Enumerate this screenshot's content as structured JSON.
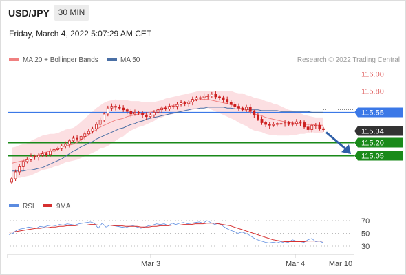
{
  "header": {
    "symbol": "USD/JPY",
    "timeframe": "30 MIN",
    "datetime": "Friday, March 4, 2022 5:07:29 AM CET",
    "source": "Research © 2022 Trading Central"
  },
  "legend": {
    "ma20_label": "MA 20 + Bollinger Bands",
    "ma50_label": "MA 50",
    "rsi_label": "RSI",
    "rsi_ma_label": "9MA"
  },
  "colors": {
    "ma20": "#f08080",
    "ma50": "#4a6fa5",
    "bollinger_fill": "#fbd9dd",
    "candle": "#cc1f1f",
    "resistance": "#e06666",
    "pivot": "#3b78e7",
    "support": "#1a8a1a",
    "current": "#333333",
    "rsi": "#5b8be0",
    "rsi_ma": "#d63030"
  },
  "chart_data": [
    {
      "type": "candlestick",
      "levels": [
        {
          "label": "116.00",
          "value": 116.0,
          "kind": "resistance"
        },
        {
          "label": "115.80",
          "value": 115.8,
          "kind": "resistance"
        },
        {
          "label": "115.55",
          "value": 115.55,
          "kind": "pivot"
        },
        {
          "label": "115.34",
          "value": 115.34,
          "kind": "current"
        },
        {
          "label": "115.20",
          "value": 115.2,
          "kind": "support"
        },
        {
          "label": "115.05",
          "value": 115.05,
          "kind": "support"
        }
      ],
      "ylim": [
        114.7,
        116.05
      ],
      "x_ticks": [
        "Mar 3",
        "Mar 4",
        "Mar 10"
      ],
      "close": [
        114.78,
        114.86,
        114.92,
        114.98,
        115.0,
        115.04,
        115.03,
        115.05,
        115.07,
        115.06,
        115.1,
        115.12,
        115.13,
        115.16,
        115.18,
        115.22,
        115.25,
        115.24,
        115.27,
        115.3,
        115.33,
        115.36,
        115.41,
        115.46,
        115.53,
        115.6,
        115.62,
        115.61,
        115.6,
        115.58,
        115.56,
        115.53,
        115.55,
        115.54,
        115.52,
        115.5,
        115.52,
        115.55,
        115.58,
        115.6,
        115.59,
        115.62,
        115.62,
        115.64,
        115.66,
        115.65,
        115.67,
        115.7,
        115.72,
        115.72,
        115.74,
        115.74,
        115.76,
        115.73,
        115.72,
        115.7,
        115.67,
        115.64,
        115.62,
        115.6,
        115.58,
        115.61,
        115.56,
        115.52,
        115.47,
        115.43,
        115.41,
        115.4,
        115.41,
        115.42,
        115.42,
        115.43,
        115.41,
        115.42,
        115.44,
        115.43,
        115.38,
        115.35,
        115.4,
        115.4,
        115.36,
        115.35
      ],
      "ma20": [
        114.96,
        114.97,
        114.98,
        114.99,
        115.0,
        115.02,
        115.04,
        115.06,
        115.08,
        115.09,
        115.1,
        115.11,
        115.12,
        115.14,
        115.16,
        115.17,
        115.18,
        115.2,
        115.23,
        115.26,
        115.29,
        115.32,
        115.35,
        115.38,
        115.4,
        115.42,
        115.44,
        115.46,
        115.47,
        115.48,
        115.5,
        115.51,
        115.52,
        115.53,
        115.53,
        115.54,
        115.55,
        115.56,
        115.58,
        115.59,
        115.61,
        115.62,
        115.63,
        115.64,
        115.65,
        115.66,
        115.67,
        115.68,
        115.69,
        115.7,
        115.7,
        115.7,
        115.69,
        115.68,
        115.67,
        115.66,
        115.65,
        115.64,
        115.62,
        115.6,
        115.59,
        115.57,
        115.55,
        115.53,
        115.52,
        115.51,
        115.49,
        115.48,
        115.47,
        115.46,
        115.45,
        115.44,
        115.43,
        115.43,
        115.42,
        115.42,
        115.41,
        115.41,
        115.41,
        115.4,
        115.4,
        115.4
      ],
      "ma50": [
        114.87,
        114.87,
        114.87,
        114.87,
        114.88,
        114.88,
        114.89,
        114.9,
        114.91,
        114.93,
        114.95,
        114.97,
        114.99,
        115.01,
        115.04,
        115.07,
        115.1,
        115.12,
        115.15,
        115.17,
        115.19,
        115.21,
        115.24,
        115.26,
        115.28,
        115.3,
        115.32,
        115.34,
        115.36,
        115.37,
        115.39,
        115.41,
        115.42,
        115.44,
        115.45,
        115.47,
        115.48,
        115.49,
        115.5,
        115.51,
        115.52,
        115.53,
        115.54,
        115.55,
        115.56,
        115.57,
        115.58,
        115.59,
        115.59,
        115.6,
        115.6,
        115.61,
        115.61,
        115.61,
        115.61,
        115.61,
        115.6,
        115.6,
        115.59,
        115.59,
        115.59,
        115.59,
        115.58,
        115.58,
        115.58,
        115.57,
        115.57,
        115.57,
        115.57,
        115.57,
        115.56,
        115.56,
        115.56,
        115.56,
        115.56,
        115.56,
        115.56,
        115.56,
        115.55,
        115.55,
        115.55,
        115.55
      ],
      "bb_width": [
        0.18,
        0.18,
        0.19,
        0.19,
        0.19,
        0.2,
        0.2,
        0.2,
        0.2,
        0.2,
        0.2,
        0.19,
        0.19,
        0.19,
        0.19,
        0.19,
        0.19,
        0.2,
        0.21,
        0.22,
        0.23,
        0.24,
        0.25,
        0.25,
        0.26,
        0.26,
        0.25,
        0.24,
        0.22,
        0.21,
        0.19,
        0.17,
        0.16,
        0.15,
        0.14,
        0.13,
        0.12,
        0.11,
        0.1,
        0.1,
        0.1,
        0.1,
        0.1,
        0.1,
        0.1,
        0.1,
        0.1,
        0.1,
        0.1,
        0.1,
        0.1,
        0.1,
        0.11,
        0.12,
        0.13,
        0.14,
        0.15,
        0.16,
        0.16,
        0.17,
        0.18,
        0.18,
        0.19,
        0.19,
        0.19,
        0.19,
        0.19,
        0.19,
        0.18,
        0.18,
        0.17,
        0.16,
        0.15,
        0.14,
        0.13,
        0.12,
        0.11,
        0.1,
        0.09,
        0.09,
        0.09,
        0.09
      ]
    },
    {
      "type": "line",
      "series": [
        {
          "name": "RSI"
        },
        {
          "name": "9MA"
        }
      ],
      "ylim": [
        25,
        75
      ],
      "y_ticks": [
        70,
        50,
        30
      ],
      "rsi": [
        48,
        50,
        55,
        57,
        58,
        60,
        59,
        58,
        61,
        60,
        62,
        63,
        62,
        64,
        63,
        65,
        64,
        63,
        65,
        66,
        67,
        68,
        66,
        58,
        66,
        60,
        63,
        62,
        61,
        60,
        59,
        61,
        62,
        60,
        58,
        60,
        62,
        63,
        65,
        64,
        65,
        62,
        66,
        64,
        66,
        67,
        65,
        66,
        67,
        68,
        66,
        70,
        67,
        64,
        66,
        62,
        58,
        55,
        53,
        50,
        52,
        50,
        47,
        43,
        40,
        38,
        36,
        35,
        36,
        35,
        37,
        35,
        36,
        40,
        38,
        37,
        36,
        40,
        42,
        37,
        38,
        35
      ],
      "rsi_ma": [
        52,
        52,
        53,
        54,
        55,
        56,
        57,
        58,
        58,
        59,
        59,
        60,
        60,
        61,
        61,
        62,
        62,
        62,
        63,
        63,
        63,
        64,
        64,
        63,
        63,
        63,
        63,
        62,
        62,
        62,
        61,
        61,
        61,
        61,
        60,
        60,
        60,
        61,
        61,
        62,
        62,
        62,
        63,
        63,
        63,
        64,
        64,
        64,
        65,
        65,
        65,
        66,
        66,
        66,
        65,
        64,
        63,
        62,
        60,
        58,
        56,
        54,
        52,
        50,
        48,
        46,
        44,
        42,
        40,
        39,
        38,
        37,
        37,
        37,
        37,
        37,
        37,
        38,
        38,
        38,
        38,
        38
      ]
    }
  ]
}
